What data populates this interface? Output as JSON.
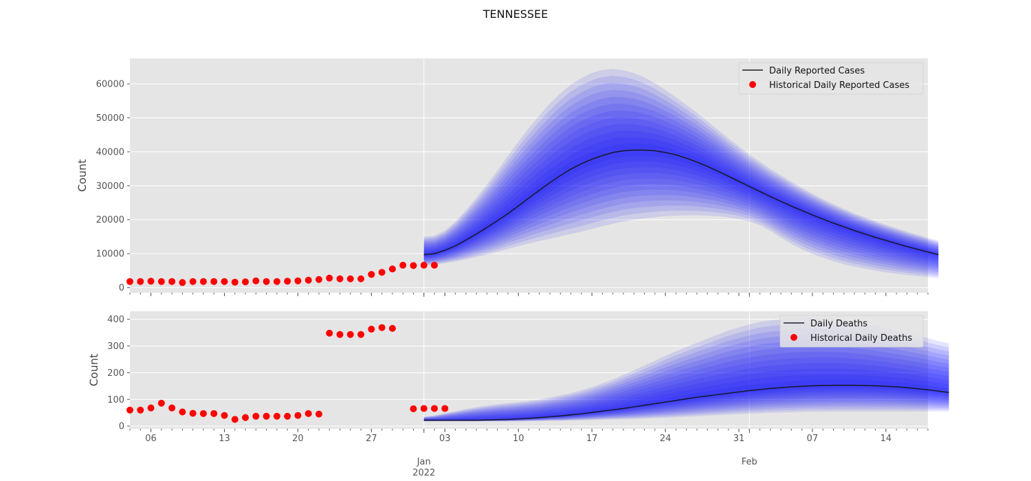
{
  "title": "TENNESSEE",
  "colors": {
    "panel_bg": "#e5e5e5",
    "grid": "#ffffff",
    "band": "#0000ff",
    "median": "#1a1a2e",
    "historical": "#ff0000",
    "tick": "#555555"
  },
  "x_axis": {
    "start": "2021-12-04",
    "end": "2022-02-18",
    "major_tick_labels": [
      {
        "date": "2021-12-06",
        "label": "06"
      },
      {
        "date": "2021-12-13",
        "label": "13"
      },
      {
        "date": "2021-12-20",
        "label": "20"
      },
      {
        "date": "2021-12-27",
        "label": "27"
      },
      {
        "date": "2022-01-03",
        "label": "03"
      },
      {
        "date": "2022-01-10",
        "label": "10"
      },
      {
        "date": "2022-01-17",
        "label": "17"
      },
      {
        "date": "2022-01-24",
        "label": "24"
      },
      {
        "date": "2022-01-31",
        "label": "31"
      },
      {
        "date": "2022-02-07",
        "label": "07"
      },
      {
        "date": "2022-02-14",
        "label": "14"
      }
    ],
    "month_labels": [
      {
        "date": "2022-01-01",
        "label": "Jan",
        "sublabel": "2022"
      },
      {
        "date": "2022-02-01",
        "label": "Feb",
        "sublabel": ""
      }
    ]
  },
  "chart_data": [
    {
      "type": "line",
      "panel": "top",
      "ylabel": "Count",
      "ylim": [
        -1500,
        67500
      ],
      "yticks": [
        0,
        10000,
        20000,
        30000,
        40000,
        50000,
        60000
      ],
      "grid": true,
      "legend_position": "top-right",
      "historical": {
        "name": "Historical Daily Reported Cases",
        "start": "2021-12-04",
        "values": [
          1800,
          1800,
          1900,
          1800,
          1800,
          1500,
          1800,
          1800,
          1800,
          1800,
          1600,
          1700,
          2000,
          1800,
          1800,
          1900,
          2000,
          2200,
          2400,
          2800,
          2600,
          2600,
          2600,
          3900,
          4500,
          5500,
          6600,
          6500,
          6600,
          6600
        ]
      },
      "forecast": {
        "name": "Daily Reported Cases",
        "start": "2022-01-01",
        "median": [
          9700,
          10000,
          11000,
          12300,
          14000,
          15800,
          17700,
          19700,
          21800,
          24100,
          26400,
          28700,
          30900,
          33000,
          34900,
          36500,
          37800,
          38900,
          39800,
          40300,
          40500,
          40500,
          40300,
          39800,
          39100,
          38100,
          37000,
          35700,
          34300,
          32800,
          31300,
          29800,
          28300,
          26800,
          25400,
          24000,
          22700,
          21400,
          20200,
          19000,
          17900,
          16800,
          15800,
          14800,
          13900,
          13000,
          12100,
          11300,
          10500,
          9700
        ],
        "outer_upper": [
          15000,
          15300,
          16800,
          19500,
          22800,
          26500,
          30400,
          34500,
          38800,
          43000,
          47000,
          50700,
          54200,
          57200,
          59800,
          61700,
          63200,
          64100,
          64400,
          64000,
          63200,
          61900,
          60200,
          58200,
          56100,
          53800,
          51500,
          49000,
          46500,
          44000,
          41600,
          39300,
          37100,
          35000,
          33100,
          31200,
          29400,
          27700,
          26100,
          24600,
          23200,
          21900,
          20700,
          19600,
          18500,
          17500,
          16500,
          15600,
          14700,
          13800
        ],
        "outer_lower": [
          6500,
          6800,
          7200,
          7700,
          8300,
          9000,
          9700,
          10500,
          11400,
          12200,
          13000,
          13700,
          14400,
          15100,
          15800,
          16500,
          17300,
          18100,
          18800,
          19500,
          20000,
          20400,
          20700,
          21000,
          21200,
          21300,
          21300,
          21200,
          21000,
          20700,
          20200,
          19500,
          18400,
          16700,
          14700,
          12900,
          11300,
          9900,
          8800,
          7800,
          6900,
          6200,
          5600,
          5000,
          4500,
          4100,
          3700,
          3400,
          3100,
          2800
        ]
      }
    },
    {
      "type": "line",
      "panel": "bottom",
      "ylabel": "Count",
      "ylim": [
        -10,
        430
      ],
      "yticks": [
        0,
        100,
        200,
        300,
        400
      ],
      "grid": true,
      "legend_position": "top-right",
      "historical": {
        "name": "Historical Daily Deaths",
        "start": "2021-12-04",
        "values": [
          60,
          60,
          68,
          86,
          68,
          53,
          48,
          47,
          47,
          40,
          25,
          32,
          37,
          37,
          37,
          37,
          40,
          47,
          45,
          348,
          343,
          343,
          343,
          363,
          369,
          366,
          null,
          65,
          66,
          66,
          66
        ]
      },
      "forecast": {
        "name": "Daily Deaths",
        "start": "2022-01-01",
        "median": [
          22,
          22,
          22,
          22,
          22,
          22,
          23,
          24,
          25,
          27,
          29,
          32,
          35,
          38,
          42,
          46,
          51,
          56,
          61,
          66,
          72,
          78,
          84,
          90,
          96,
          102,
          108,
          113,
          118,
          123,
          128,
          133,
          137,
          141,
          144,
          147,
          149,
          151,
          152,
          153,
          153,
          153,
          152,
          151,
          149,
          147,
          144,
          140,
          136,
          131,
          126
        ],
        "outer_upper": [
          35,
          40,
          48,
          56,
          64,
          71,
          77,
          82,
          86,
          90,
          95,
          100,
          107,
          115,
          124,
          134,
          146,
          160,
          175,
          192,
          209,
          227,
          245,
          263,
          280,
          296,
          312,
          327,
          343,
          358,
          370,
          381,
          390,
          396,
          400,
          404,
          406,
          406,
          405,
          402,
          398,
          392,
          385,
          376,
          367,
          358,
          348,
          339,
          329,
          319,
          310
        ],
        "outer_lower": [
          18,
          18,
          18,
          18,
          18,
          18,
          18,
          18,
          18,
          18,
          19,
          19,
          20,
          20,
          21,
          22,
          23,
          24,
          25,
          26,
          27,
          28,
          30,
          31,
          33,
          35,
          37,
          39,
          41,
          43,
          45,
          47,
          48,
          50,
          51,
          52,
          53,
          54,
          54,
          55,
          55,
          55,
          55,
          55,
          55,
          55,
          55,
          55,
          55,
          55,
          55
        ]
      }
    }
  ]
}
